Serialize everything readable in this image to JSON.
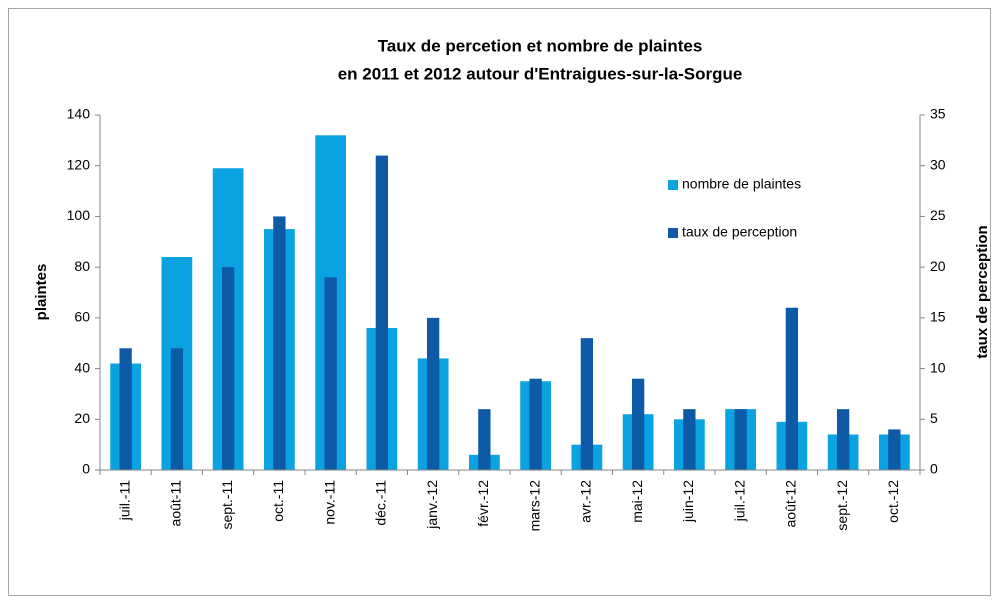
{
  "chart_data": {
    "type": "bar",
    "title": [
      "Taux de percetion et nombre de plaintes",
      "en 2011 et 2012 autour d'Entraigues-sur-la-Sorgue"
    ],
    "y_label": "plaintes",
    "y2_label": "taux de perception",
    "categories": [
      "juil.-11",
      "août-11",
      "sept.-11",
      "oct.-11",
      "nov.-11",
      "déc.-11",
      "janv.-12",
      "févr.-12",
      "mars-12",
      "avr.-12",
      "mai-12",
      "juin-12",
      "juil.-12",
      "août-12",
      "sept.-12",
      "oct.-12"
    ],
    "series": [
      {
        "name": "nombre de plaintes",
        "color": "#0aa2e0",
        "values": [
          42,
          84,
          119,
          95,
          132,
          56,
          44,
          6,
          35,
          10,
          22,
          20,
          24,
          19,
          14,
          14
        ]
      },
      {
        "name": "taux de perception",
        "color": "#0d5aa7",
        "axis": "y2",
        "values": [
          12,
          12,
          20,
          25,
          19,
          31,
          15,
          6,
          9,
          13,
          9,
          6,
          6,
          16,
          6,
          4
        ]
      }
    ],
    "ylim": [
      0,
      140
    ],
    "yticks": [
      0,
      20,
      40,
      60,
      80,
      100,
      120,
      140
    ],
    "y2lim": [
      0,
      35
    ],
    "y2ticks": [
      0,
      5,
      10,
      15,
      20,
      25,
      30,
      35
    ],
    "legend": "upper right"
  }
}
